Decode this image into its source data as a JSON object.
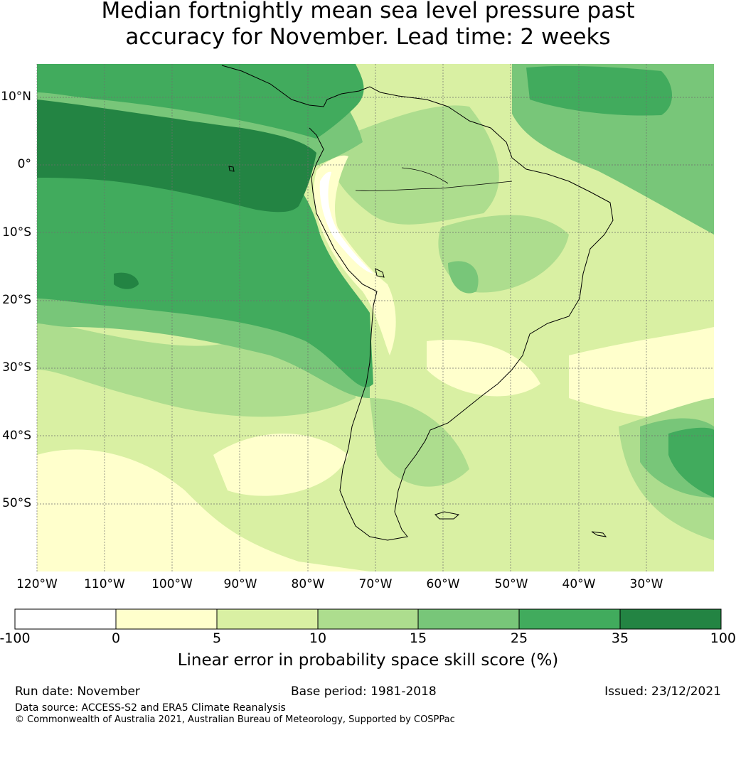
{
  "title": {
    "line1": "Median fortnightly mean sea level pressure past",
    "line2": "accuracy for November. Lead time: 2 weeks"
  },
  "map": {
    "lat_labels": [
      "10°N",
      "0°",
      "10°S",
      "20°S",
      "30°S",
      "40°S",
      "50°S"
    ],
    "lon_labels": [
      "120°W",
      "110°W",
      "100°W",
      "90°W",
      "80°W",
      "70°W",
      "60°W",
      "50°W",
      "40°W",
      "30°W"
    ],
    "region": "South America",
    "lon_range": [
      -122,
      -22
    ],
    "lat_range": [
      -60,
      15
    ]
  },
  "colorbar": {
    "ticks": [
      "-100",
      "0",
      "5",
      "10",
      "15",
      "25",
      "35",
      "100"
    ],
    "colors": [
      "#ffffff",
      "#ffffcc",
      "#d9f0a3",
      "#addd8e",
      "#78c679",
      "#41ab5d",
      "#238443"
    ],
    "label": "Linear error in probability space skill score (%)"
  },
  "footer": {
    "run_date": "Run date: November",
    "base_period": "Base period: 1981-2018",
    "issued": "Issued: 23/12/2021",
    "data_source": "Data source: ACCESS-S2 and ERA5 Climate Reanalysis",
    "copyright": "© Commonwealth of Australia 2021, Australian Bureau of Meteorology, Supported by COSPPac"
  }
}
